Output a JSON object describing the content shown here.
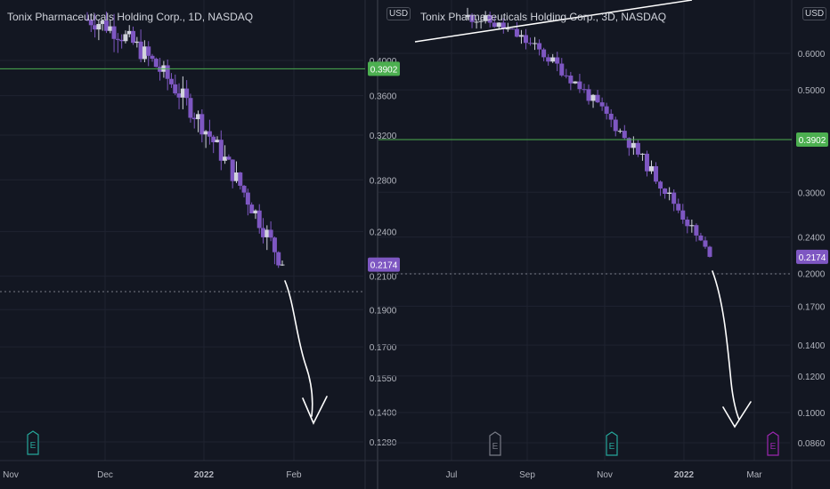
{
  "colors": {
    "background": "#131722",
    "grid": "#1f2330",
    "axis_text": "#b2b5be",
    "candle": "#7e57c2",
    "candle_up": "#d1d4dc",
    "horizontal_line": "#4caf50",
    "price_badge": "#7e57c2",
    "drawing": "#ffffff"
  },
  "chart_data": [
    {
      "type": "candlestick",
      "title": "Tonix Pharmaceuticals Holding Corp., 1D, NASDAQ",
      "currency": "USD",
      "scale": "log",
      "y_ticks": [
        "0.4000",
        "0.3600",
        "0.3200",
        "0.2800",
        "0.2400",
        "0.2100",
        "0.1900",
        "0.1700",
        "0.1550",
        "0.1400",
        "0.1280"
      ],
      "x_ticks": [
        "Nov",
        "Dec",
        "2022",
        "Feb"
      ],
      "horizontal_line": {
        "value": 0.3902,
        "label": "0.3902"
      },
      "last_price": {
        "value": 0.2174,
        "label": "0.2174"
      },
      "projection": "hand-drawn arrow pointing down to about 0.1350",
      "markers": [
        "E"
      ]
    },
    {
      "type": "candlestick",
      "title": "Tonix Pharmaceuticals Holding Corp., 3D, NASDAQ",
      "currency": "USD",
      "scale": "log",
      "y_ticks": [
        "0.6000",
        "0.5000",
        "0.3000",
        "0.2400",
        "0.2000",
        "0.1700",
        "0.1400",
        "0.1200",
        "0.1000",
        "0.0860"
      ],
      "x_ticks": [
        "Jul",
        "Sep",
        "Nov",
        "2022",
        "Mar"
      ],
      "horizontal_line": {
        "value": 0.3902,
        "label": "0.3902"
      },
      "last_price": {
        "value": 0.2174,
        "label": "0.2174"
      },
      "projection": "hand-drawn arrow pointing down to about 0.0930",
      "markers": [
        "E",
        "E",
        "E"
      ]
    }
  ]
}
